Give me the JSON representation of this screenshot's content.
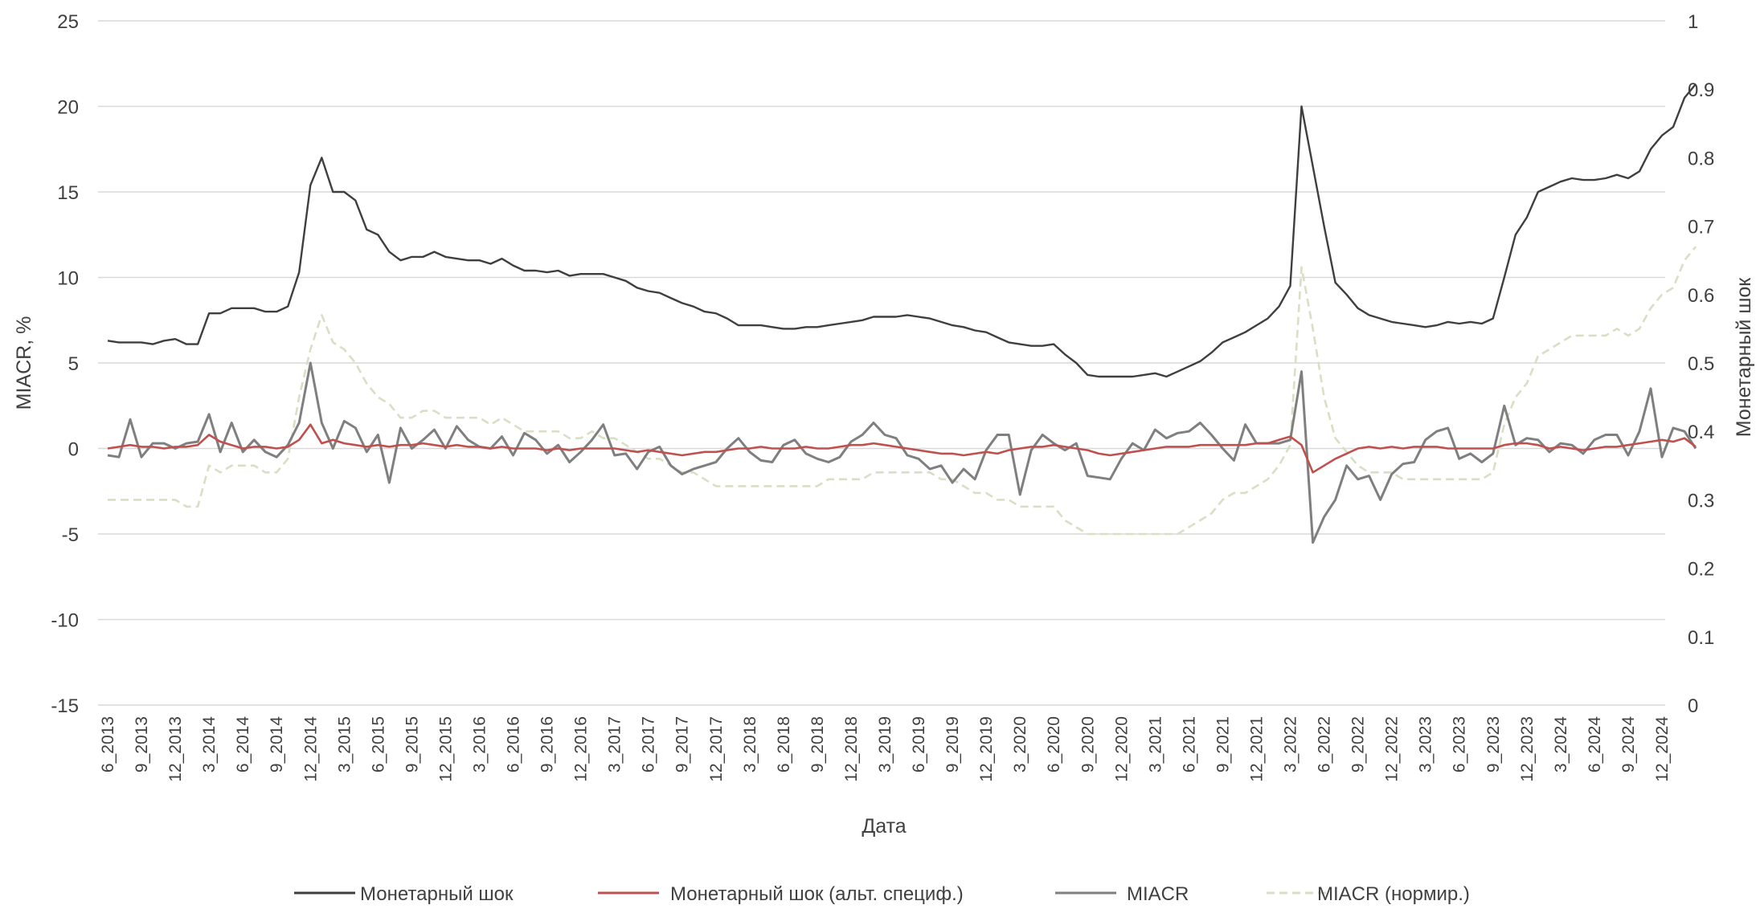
{
  "chart_data": {
    "type": "line",
    "xlabel": "Дата",
    "ylabel": "MIACR, %",
    "y2label": "Монетарный шок",
    "ylim": [
      -15,
      25
    ],
    "y2lim": [
      0,
      1
    ],
    "yticks": [
      "25",
      "20",
      "15",
      "10",
      "5",
      "0",
      "-5",
      "-10",
      "-15"
    ],
    "y2ticks": [
      "1",
      "0.9",
      "0.8",
      "0.7",
      "0.6",
      "0.5",
      "0.4",
      "0.3",
      "0.2",
      "0.1",
      "0"
    ],
    "x_start": "6_2013",
    "x_end": "12_2024",
    "xticks": [
      "6_2013",
      "9_2013",
      "12_2013",
      "3_2014",
      "6_2014",
      "9_2014",
      "12_2014",
      "3_2015",
      "6_2015",
      "9_2015",
      "12_2015",
      "3_2016",
      "6_2016",
      "9_2016",
      "12_2016",
      "3_2017",
      "6_2017",
      "9_2017",
      "12_2017",
      "3_2018",
      "6_2018",
      "9_2018",
      "12_2018",
      "3_2019",
      "6_2019",
      "9_2019",
      "12_2019",
      "3_2020",
      "6_2020",
      "9_2020",
      "12_2020",
      "3_2021",
      "6_2021",
      "9_2021",
      "12_2021",
      "3_2022",
      "6_2022",
      "9_2022",
      "12_2022",
      "3_2023",
      "6_2023",
      "9_2023",
      "12_2023",
      "3_2024",
      "6_2024",
      "9_2024",
      "12_2024"
    ],
    "grid": true,
    "legend_position": "bottom",
    "series": [
      {
        "name": "Монетарный шок",
        "axis": "left",
        "color": "#3f3f3f",
        "dash": "solid",
        "values": [
          6.3,
          6.2,
          6.2,
          6.2,
          6.1,
          6.3,
          6.4,
          6.1,
          6.1,
          7.9,
          7.9,
          8.2,
          8.2,
          8.2,
          8.0,
          8.0,
          8.3,
          10.3,
          15.4,
          17.0,
          15.0,
          15.0,
          14.5,
          12.8,
          12.5,
          11.5,
          11.0,
          11.2,
          11.2,
          11.5,
          11.2,
          11.1,
          11.0,
          11.0,
          10.8,
          11.1,
          10.7,
          10.4,
          10.4,
          10.3,
          10.4,
          10.1,
          10.2,
          10.2,
          10.2,
          10.0,
          9.8,
          9.4,
          9.2,
          9.1,
          8.8,
          8.5,
          8.3,
          8.0,
          7.9,
          7.6,
          7.2,
          7.2,
          7.2,
          7.1,
          7.0,
          7.0,
          7.1,
          7.1,
          7.2,
          7.3,
          7.4,
          7.5,
          7.7,
          7.7,
          7.7,
          7.8,
          7.7,
          7.6,
          7.4,
          7.2,
          7.1,
          6.9,
          6.8,
          6.5,
          6.2,
          6.1,
          6.0,
          6.0,
          6.1,
          5.5,
          5.0,
          4.3,
          4.2,
          4.2,
          4.2,
          4.2,
          4.3,
          4.4,
          4.2,
          4.5,
          4.8,
          5.1,
          5.6,
          6.2,
          6.5,
          6.8,
          7.2,
          7.6,
          8.3,
          9.5,
          20.0,
          16.5,
          13.0,
          9.7,
          9.0,
          8.2,
          7.8,
          7.6,
          7.4,
          7.3,
          7.2,
          7.1,
          7.2,
          7.4,
          7.3,
          7.4,
          7.3,
          7.6,
          10.0,
          12.5,
          13.5,
          15.0,
          15.3,
          15.6,
          15.8,
          15.7,
          15.7,
          15.8,
          16.0,
          15.8,
          16.2,
          17.5,
          18.3,
          18.8,
          20.5,
          21.3
        ]
      },
      {
        "name": "Монетарный шок (альт. специф.)",
        "axis": "left",
        "color": "#c0504d",
        "dash": "solid",
        "values": [
          0.0,
          0.1,
          0.2,
          0.1,
          0.1,
          0.0,
          0.1,
          0.1,
          0.2,
          0.8,
          0.4,
          0.2,
          0.0,
          0.1,
          0.1,
          0.0,
          0.1,
          0.5,
          1.4,
          0.3,
          0.5,
          0.3,
          0.2,
          0.1,
          0.2,
          0.1,
          0.2,
          0.2,
          0.3,
          0.2,
          0.1,
          0.2,
          0.1,
          0.1,
          0.0,
          0.1,
          0.0,
          0.0,
          0.0,
          -0.1,
          0.0,
          -0.1,
          0.0,
          0.0,
          0.0,
          0.0,
          -0.1,
          -0.2,
          -0.1,
          -0.2,
          -0.3,
          -0.4,
          -0.3,
          -0.2,
          -0.2,
          -0.1,
          0.0,
          0.0,
          0.1,
          0.0,
          0.0,
          0.0,
          0.1,
          0.0,
          0.0,
          0.1,
          0.2,
          0.2,
          0.3,
          0.2,
          0.1,
          0.0,
          -0.1,
          -0.2,
          -0.3,
          -0.3,
          -0.4,
          -0.3,
          -0.2,
          -0.3,
          -0.1,
          0.0,
          0.1,
          0.1,
          0.2,
          0.1,
          0.0,
          -0.1,
          -0.3,
          -0.4,
          -0.3,
          -0.2,
          -0.1,
          0.0,
          0.1,
          0.1,
          0.1,
          0.2,
          0.2,
          0.2,
          0.2,
          0.2,
          0.3,
          0.3,
          0.5,
          0.7,
          0.2,
          -1.4,
          -1.0,
          -0.6,
          -0.3,
          0.0,
          0.1,
          0.0,
          0.1,
          0.0,
          0.1,
          0.1,
          0.1,
          0.0,
          0.0,
          0.0,
          0.0,
          0.0,
          0.2,
          0.3,
          0.3,
          0.2,
          0.0,
          0.1,
          0.0,
          -0.1,
          0.0,
          0.1,
          0.1,
          0.2,
          0.3,
          0.4,
          0.5,
          0.4,
          0.6,
          0.1
        ]
      },
      {
        "name": "MIACR",
        "axis": "left",
        "color": "#7f7f7f",
        "dash": "solid",
        "values": [
          -0.4,
          -0.5,
          1.7,
          -0.5,
          0.3,
          0.3,
          0.0,
          0.3,
          0.4,
          2.0,
          -0.2,
          1.5,
          -0.2,
          0.5,
          -0.2,
          -0.5,
          0.2,
          1.5,
          5.0,
          1.5,
          0.0,
          1.6,
          1.2,
          -0.2,
          0.8,
          -2.0,
          1.2,
          0.0,
          0.5,
          1.1,
          0.0,
          1.3,
          0.5,
          0.1,
          0.0,
          0.7,
          -0.4,
          0.9,
          0.5,
          -0.3,
          0.2,
          -0.8,
          -0.2,
          0.5,
          1.4,
          -0.4,
          -0.3,
          -1.2,
          -0.2,
          0.1,
          -1.0,
          -1.5,
          -1.2,
          -1.0,
          -0.8,
          0.0,
          0.6,
          -0.2,
          -0.7,
          -0.8,
          0.2,
          0.5,
          -0.3,
          -0.6,
          -0.8,
          -0.5,
          0.4,
          0.8,
          1.5,
          0.8,
          0.6,
          -0.4,
          -0.6,
          -1.2,
          -1.0,
          -2.0,
          -1.2,
          -1.8,
          -0.1,
          0.8,
          0.8,
          -2.7,
          -0.1,
          0.8,
          0.3,
          -0.1,
          0.3,
          -1.6,
          -1.7,
          -1.8,
          -0.6,
          0.3,
          -0.1,
          1.1,
          0.6,
          0.9,
          1.0,
          1.5,
          0.8,
          0.0,
          -0.7,
          1.4,
          0.3,
          0.3,
          0.3,
          0.5,
          4.5,
          -5.5,
          -4.0,
          -3.0,
          -1.0,
          -1.8,
          -1.6,
          -3.0,
          -1.5,
          -0.9,
          -0.8,
          0.5,
          1.0,
          1.2,
          -0.6,
          -0.3,
          -0.8,
          -0.3,
          2.5,
          0.2,
          0.6,
          0.5,
          -0.2,
          0.3,
          0.2,
          -0.3,
          0.5,
          0.8,
          0.8,
          -0.4,
          1.0,
          3.5,
          -0.5,
          1.2,
          1.0,
          0.0
        ]
      },
      {
        "name": "MIACR (нормир.)",
        "axis": "right",
        "color": "#d9dfc4",
        "dash": "dashed",
        "values": [
          0.3,
          0.3,
          0.3,
          0.3,
          0.3,
          0.3,
          0.3,
          0.29,
          0.29,
          0.35,
          0.34,
          0.35,
          0.35,
          0.35,
          0.34,
          0.34,
          0.36,
          0.45,
          0.52,
          0.57,
          0.53,
          0.52,
          0.5,
          0.47,
          0.45,
          0.44,
          0.42,
          0.42,
          0.43,
          0.43,
          0.42,
          0.42,
          0.42,
          0.42,
          0.41,
          0.42,
          0.41,
          0.4,
          0.4,
          0.4,
          0.4,
          0.39,
          0.39,
          0.4,
          0.39,
          0.39,
          0.38,
          0.37,
          0.36,
          0.36,
          0.35,
          0.34,
          0.34,
          0.33,
          0.32,
          0.32,
          0.32,
          0.32,
          0.32,
          0.32,
          0.32,
          0.32,
          0.32,
          0.32,
          0.33,
          0.33,
          0.33,
          0.33,
          0.34,
          0.34,
          0.34,
          0.34,
          0.34,
          0.34,
          0.33,
          0.33,
          0.32,
          0.31,
          0.31,
          0.3,
          0.3,
          0.29,
          0.29,
          0.29,
          0.29,
          0.27,
          0.26,
          0.25,
          0.25,
          0.25,
          0.25,
          0.25,
          0.25,
          0.25,
          0.25,
          0.25,
          0.26,
          0.27,
          0.28,
          0.3,
          0.31,
          0.31,
          0.32,
          0.33,
          0.35,
          0.38,
          0.64,
          0.55,
          0.45,
          0.39,
          0.37,
          0.35,
          0.34,
          0.34,
          0.34,
          0.33,
          0.33,
          0.33,
          0.33,
          0.33,
          0.33,
          0.33,
          0.33,
          0.34,
          0.41,
          0.45,
          0.47,
          0.51,
          0.52,
          0.53,
          0.54,
          0.54,
          0.54,
          0.54,
          0.55,
          0.54,
          0.55,
          0.58,
          0.6,
          0.61,
          0.65,
          0.67
        ]
      }
    ]
  }
}
